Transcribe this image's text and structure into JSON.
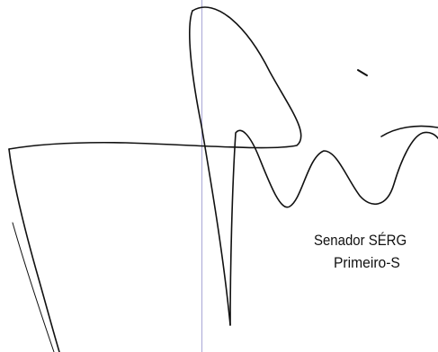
{
  "document": {
    "signer_name": "Senador SÉRG",
    "signer_title": "Primeiro-S"
  },
  "colors": {
    "paper": "#ffffff",
    "ink": "#111111",
    "margin_rule": "#a9a6d6"
  }
}
